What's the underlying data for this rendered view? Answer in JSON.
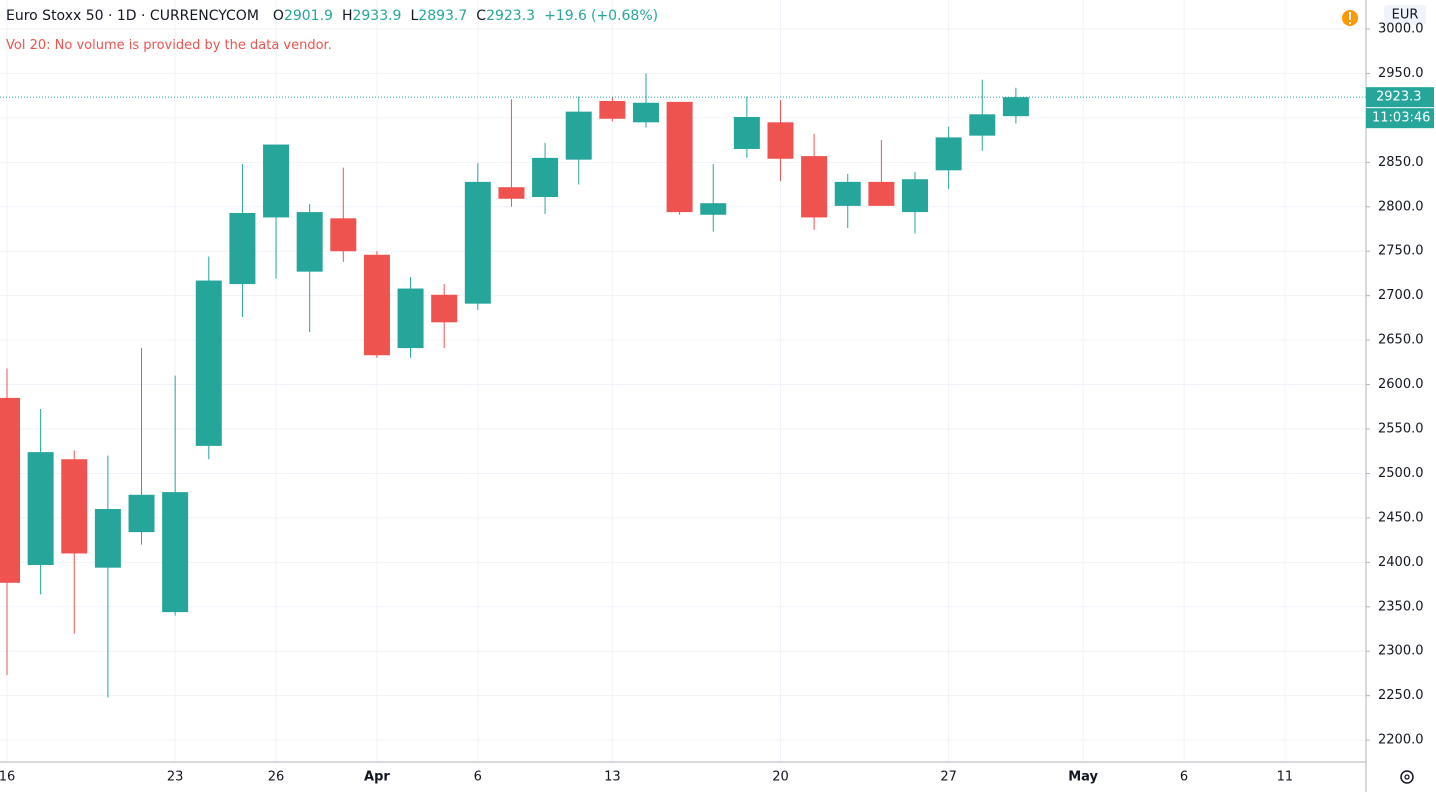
{
  "header": {
    "title": "Euro Stoxx 50 · 1D · CURRENCYCOM",
    "ohlc_letters": [
      "O",
      "H",
      "L",
      "C"
    ],
    "change": "+19.6",
    "change_pct": "(+0.68%)",
    "notice": "Vol 20: No volume is provided by the data vendor.",
    "currency": "EUR",
    "countdown": "11:03:46"
  },
  "chart_data": {
    "type": "candlestick",
    "up_color": "#26a69a",
    "down_color": "#ef5350",
    "grid": true,
    "categories": [
      "16",
      null,
      null,
      null,
      null,
      "23",
      null,
      null,
      "26",
      null,
      null,
      "Apr",
      null,
      null,
      "6",
      null,
      null,
      null,
      "13",
      null,
      null,
      null,
      null,
      "20",
      null,
      null,
      null,
      null,
      "27",
      null,
      null,
      null,
      "May",
      null,
      null,
      "6",
      null,
      null,
      "11"
    ],
    "open": [
      2585,
      2397,
      2516,
      2394,
      2434,
      2344,
      2531,
      2713,
      2788,
      2727,
      2787,
      2746,
      2641,
      2701,
      2691,
      2822,
      2811,
      2853,
      2919,
      2895,
      2918,
      2791,
      2865,
      2895,
      2857,
      2801,
      2828,
      2794,
      2841,
      2880,
      2901.9,
      null,
      null,
      null,
      null,
      null,
      null,
      null,
      null
    ],
    "high": [
      2618,
      2572.5,
      2526,
      2520,
      2641,
      2610,
      2744,
      2848,
      2870,
      2803,
      2844,
      2750,
      2721,
      2713,
      2849,
      2921,
      2872,
      2924,
      2924,
      2950,
      2918,
      2848,
      2924,
      2920,
      2882,
      2837,
      2875,
      2839,
      2890,
      2943,
      2933.9,
      null,
      null,
      null,
      null,
      null,
      null,
      null,
      null
    ],
    "low": [
      2273,
      2364,
      2320,
      2248,
      2420,
      2340,
      2516,
      2676,
      2719,
      2659,
      2738,
      2630,
      2630,
      2641,
      2684,
      2800,
      2792,
      2825,
      2896,
      2889,
      2791,
      2772,
      2855,
      2829,
      2774,
      2776,
      2801,
      2770,
      2820,
      2863,
      2893.7,
      null,
      null,
      null,
      null,
      null,
      null,
      null,
      null
    ],
    "close": [
      2377,
      2524,
      2410,
      2460,
      2476,
      2479,
      2717,
      2793,
      2870,
      2794,
      2750,
      2633,
      2708,
      2670,
      2828,
      2809,
      2855,
      2907,
      2899,
      2917,
      2794,
      2804,
      2901,
      2854,
      2788,
      2828,
      2801,
      2831,
      2878,
      2904,
      2923.3,
      null,
      null,
      null,
      null,
      null,
      null,
      null,
      null
    ],
    "ylim": [
      2175.4,
      3032.6
    ],
    "yticks": [
      {
        "value": 2200,
        "label": "2200.0"
      },
      {
        "value": 2250,
        "label": "2250.0"
      },
      {
        "value": 2300,
        "label": "2300.0"
      },
      {
        "value": 2350,
        "label": "2350.0"
      },
      {
        "value": 2400,
        "label": "2400.0"
      },
      {
        "value": 2450,
        "label": "2450.0"
      },
      {
        "value": 2500,
        "label": "2500.0"
      },
      {
        "value": 2550,
        "label": "2550.0"
      },
      {
        "value": 2600,
        "label": "2600.0"
      },
      {
        "value": 2650,
        "label": "2650.0"
      },
      {
        "value": 2700,
        "label": "2700.0"
      },
      {
        "value": 2750,
        "label": "2750.0"
      },
      {
        "value": 2800,
        "label": "2800.0"
      },
      {
        "value": 2850,
        "label": "2850.0"
      },
      {
        "value": 2900,
        "label": "2900.0"
      },
      {
        "value": 2950,
        "label": "2950.0"
      },
      {
        "value": 3000,
        "label": "3000.0"
      }
    ]
  }
}
